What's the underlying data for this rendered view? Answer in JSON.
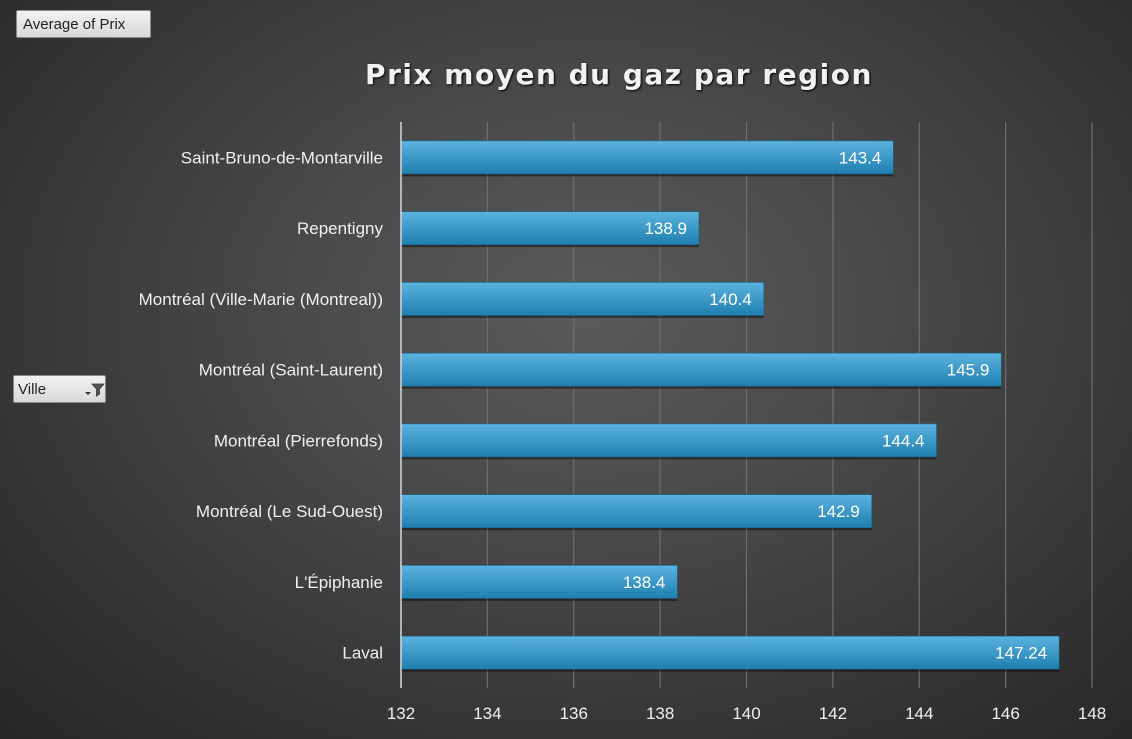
{
  "pivot": {
    "measure_label": "Average of Prix",
    "row_field_label": "Ville"
  },
  "colors": {
    "bar_top": "#5bb3de",
    "bar_bottom": "#1f7fb0",
    "gridline": "#6e6e6e",
    "axis_line": "#d9d9d9"
  },
  "chart_data": {
    "type": "bar",
    "orientation": "horizontal",
    "title": "Prix moyen du gaz par region",
    "xlabel": "",
    "ylabel": "",
    "categories": [
      "Laval",
      "L'Épiphanie",
      "Montréal (Le Sud-Ouest)",
      "Montréal (Pierrefonds)",
      "Montréal (Saint-Laurent)",
      "Montréal (Ville-Marie (Montreal))",
      "Repentigny",
      "Saint-Bruno-de-Montarville"
    ],
    "values": [
      147.24,
      138.4,
      142.9,
      144.4,
      145.9,
      140.4,
      138.9,
      143.4
    ],
    "data_labels": [
      "147.24",
      "138.4",
      "142.9",
      "144.4",
      "145.9",
      "140.4",
      "138.9",
      "143.4"
    ],
    "xlim": [
      132,
      148
    ],
    "xticks": [
      "132",
      "134",
      "136",
      "138",
      "140",
      "142",
      "144",
      "146",
      "148"
    ],
    "grid": true,
    "legend": "none"
  }
}
